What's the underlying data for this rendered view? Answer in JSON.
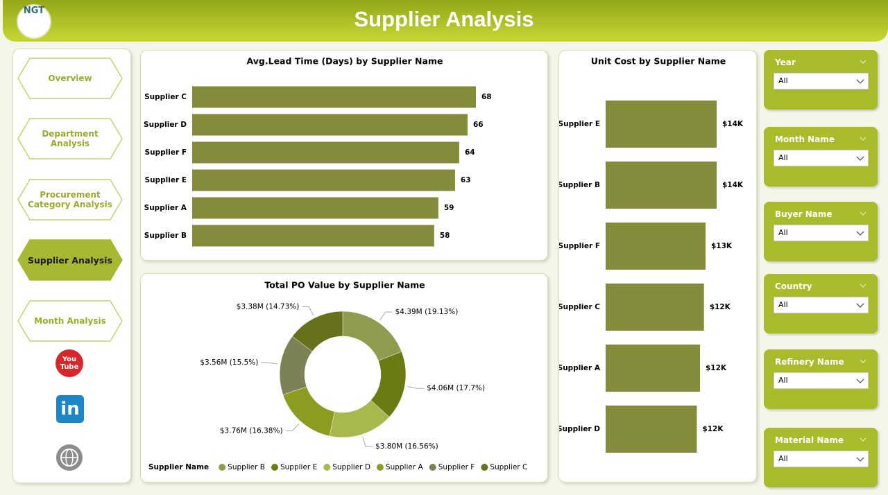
{
  "header": {
    "logo": "NGT",
    "title": "Supplier Analysis"
  },
  "nav": {
    "items": [
      "Overview",
      "Department Analysis",
      "Procurement Category Analysis",
      "Supplier Analysis",
      "Month Analysis"
    ],
    "active": 3
  },
  "social": {
    "youtube": "You Tube",
    "linkedin": "in"
  },
  "chart_data": [
    {
      "type": "hbar",
      "title": "Avg.Lead Time (Days) by Supplier Name",
      "color": "#848c3c",
      "categories": [
        "Supplier C",
        "Supplier D",
        "Supplier F",
        "Supplier E",
        "Supplier A",
        "Supplier B"
      ],
      "values": [
        68,
        66,
        64,
        63,
        59,
        58
      ]
    },
    {
      "type": "donut",
      "title": "Total PO Value by Supplier Name",
      "legend_title": "Supplier Name",
      "series": [
        {
          "name": "Supplier B",
          "color": "#8f9b4e",
          "values": [
            4390000
          ],
          "value_labels": [
            "$4.39M (19.13%)"
          ]
        },
        {
          "name": "Supplier E",
          "color": "#6b7a12",
          "values": [
            4060000
          ],
          "value_labels": [
            "$4.06M (17.7%)"
          ]
        },
        {
          "name": "Supplier D",
          "color": "#a9b84c",
          "values": [
            3800000
          ],
          "value_labels": [
            "$3.80M (16.56%)"
          ]
        },
        {
          "name": "Supplier A",
          "color": "#8b9c21",
          "values": [
            3760000
          ],
          "value_labels": [
            "$3.76M (16.38%)"
          ]
        },
        {
          "name": "Supplier F",
          "color": "#7d8256",
          "values": [
            3560000
          ],
          "value_labels": [
            "$3.56M (15.5%)"
          ]
        },
        {
          "name": "Supplier C",
          "color": "#67701a",
          "values": [
            3380000
          ],
          "value_labels": [
            "$3.38M (14.73%)"
          ]
        }
      ]
    },
    {
      "type": "hbar",
      "title": "Unit Cost by Supplier Name",
      "color": "#848c3c",
      "categories": [
        "Supplier E",
        "Supplier B",
        "Supplier F",
        "Supplier C",
        "Supplier A",
        "Supplier D"
      ],
      "values": [
        14000,
        14000,
        12600,
        12400,
        11900,
        11500
      ],
      "value_labels": [
        "$14K",
        "$14K",
        "$13K",
        "$12K",
        "$12K",
        "$12K"
      ]
    }
  ],
  "filters": [
    {
      "label": "Year",
      "value": "All"
    },
    {
      "label": "Month Name",
      "value": "All"
    },
    {
      "label": "Buyer Name",
      "value": "All"
    },
    {
      "label": "Country",
      "value": "All"
    },
    {
      "label": "Refinery Name",
      "value": "All"
    },
    {
      "label": "Material Name",
      "value": "All"
    }
  ]
}
